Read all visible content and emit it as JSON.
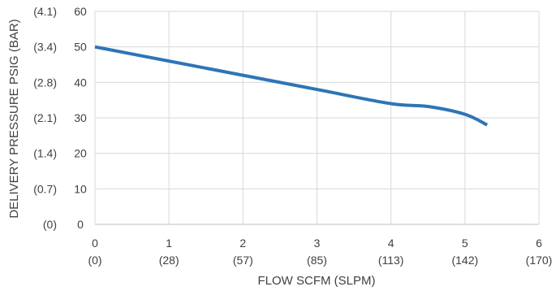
{
  "chart_data": {
    "type": "line",
    "title": "",
    "xlabel": "FLOW SCFM (SLPM)",
    "ylabel": "DELIVERY PRESSURE PSIG (BAR)",
    "xlim": [
      0,
      6
    ],
    "ylim": [
      0,
      60
    ],
    "x_ticks": [
      {
        "value": 0,
        "label": "0",
        "sublabel": "(0)"
      },
      {
        "value": 1,
        "label": "1",
        "sublabel": "(28)"
      },
      {
        "value": 2,
        "label": "2",
        "sublabel": "(57)"
      },
      {
        "value": 3,
        "label": "3",
        "sublabel": "(85)"
      },
      {
        "value": 4,
        "label": "4",
        "sublabel": "(113)"
      },
      {
        "value": 5,
        "label": "5",
        "sublabel": "(142)"
      },
      {
        "value": 6,
        "label": "6",
        "sublabel": "(170)"
      }
    ],
    "y_ticks": [
      {
        "value": 0,
        "label": "0",
        "bar": "(0)"
      },
      {
        "value": 10,
        "label": "10",
        "bar": "(0.7)"
      },
      {
        "value": 20,
        "label": "20",
        "bar": "(1.4)"
      },
      {
        "value": 30,
        "label": "30",
        "bar": "(2.1)"
      },
      {
        "value": 40,
        "label": "40",
        "bar": "(2.8)"
      },
      {
        "value": 50,
        "label": "50",
        "bar": "(3.4)"
      },
      {
        "value": 60,
        "label": "60",
        "bar": "(4.1)"
      }
    ],
    "grid": true,
    "series": [
      {
        "color": "#2e75b6",
        "points": [
          {
            "x": 0,
            "y": 50
          },
          {
            "x": 1,
            "y": 46
          },
          {
            "x": 2,
            "y": 42
          },
          {
            "x": 3,
            "y": 38
          },
          {
            "x": 4,
            "y": 34
          },
          {
            "x": 4.5,
            "y": 33.2
          },
          {
            "x": 5,
            "y": 31
          },
          {
            "x": 5.3,
            "y": 28
          }
        ]
      }
    ]
  }
}
